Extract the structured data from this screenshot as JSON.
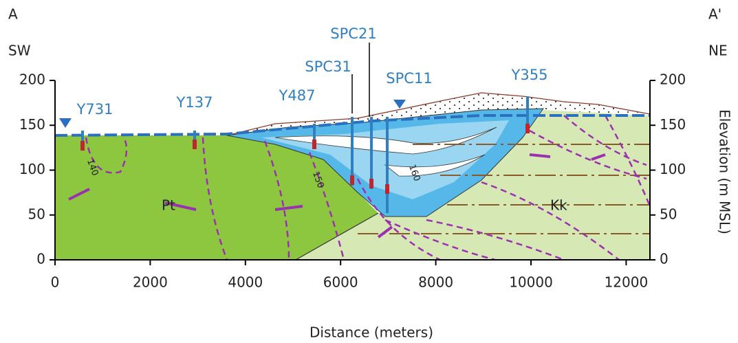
{
  "header": {
    "left_point": "A",
    "right_point": "A'",
    "left_direction": "SW",
    "right_direction": "NE"
  },
  "chart_data": {
    "type": "cross-section",
    "xlabel": "Distance (meters)",
    "y2label": "Elevation (m MSL)",
    "xlim": [
      0,
      12500
    ],
    "ylim": [
      0,
      200
    ],
    "y2lim": [
      0,
      200
    ],
    "xticks": [
      0,
      2000,
      4000,
      6000,
      8000,
      10000,
      12000
    ],
    "yticks": [
      0,
      50,
      100,
      150,
      200
    ],
    "y2ticks": [
      0,
      50,
      100,
      150,
      200
    ],
    "wells": [
      "Y731",
      "Y137",
      "Y487",
      "SPC31",
      "SPC21",
      "SPC11",
      "Y355"
    ],
    "units": [
      "Pt",
      "Kk"
    ],
    "contours": [
      140,
      150,
      160
    ]
  }
}
